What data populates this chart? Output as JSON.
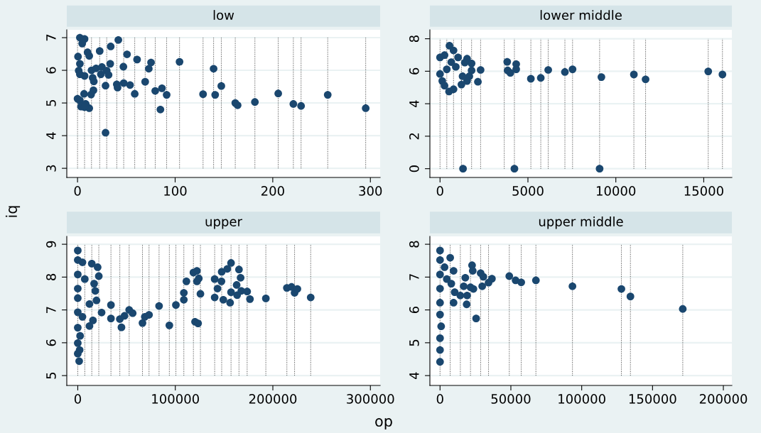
{
  "chart_data": [
    {
      "type": "scatter",
      "title": "low",
      "ylabel": "iq",
      "xlim": [
        -11,
        310
      ],
      "xticks": [
        0,
        100,
        200,
        300
      ],
      "ylim": [
        2.72,
        7.24
      ],
      "yticks": [
        3,
        4,
        5,
        6,
        7
      ],
      "grid": "y",
      "marker": "circle",
      "series": [
        {
          "color": "#1a476f",
          "x": [
            2.4,
            7.2,
            4.8,
            0.5,
            10.3,
            12,
            22.7,
            34,
            41.8,
            50.7,
            61,
            75.3,
            104.5,
            139.4,
            73,
            47,
            2.4,
            1.2,
            2.4,
            7.2,
            14.3,
            19,
            25,
            33.5,
            29.9,
            23.9,
            31.8,
            15.5,
            16.7,
            28.7,
            40.2,
            41,
            47.3,
            53.8,
            69.3,
            58.6,
            79.6,
            86.5,
            91.3,
            84.9,
            128.6,
            141,
            147.3,
            161.6,
            164,
            181.7,
            205.6,
            221.1,
            229,
            256.3,
            295.2,
            28.7,
            16.3,
            6.7,
            13.9,
            0,
            2.4,
            8.4,
            3.6,
            12,
            7.2
          ],
          "values": [
            7.0,
            6.96,
            6.82,
            6.42,
            6.55,
            6.44,
            6.59,
            6.73,
            6.93,
            6.49,
            6.33,
            6.24,
            6.26,
            6.05,
            6.05,
            6.11,
            6.2,
            5.99,
            5.88,
            5.83,
            6.0,
            6.06,
            6.1,
            6.2,
            5.99,
            5.88,
            5.86,
            5.77,
            5.66,
            5.53,
            5.57,
            5.47,
            5.61,
            5.55,
            5.65,
            5.28,
            5.37,
            5.45,
            5.25,
            4.8,
            5.27,
            5.25,
            5.52,
            5.0,
            4.93,
            5.03,
            5.29,
            4.97,
            4.91,
            5.25,
            4.84,
            4.09,
            5.39,
            5.28,
            5.26,
            5.13,
            5.08,
            4.97,
            4.89,
            4.84,
            4.87
          ]
        }
      ],
      "ref_lines": [
        {
          "axis": "x",
          "value": 0,
          "line_style": "dotted"
        },
        {
          "axis": "x",
          "value": 7.2,
          "line_style": "dotted"
        },
        {
          "axis": "x",
          "value": 14.3,
          "line_style": "dotted"
        },
        {
          "axis": "x",
          "value": 22.7,
          "line_style": "dotted"
        },
        {
          "axis": "x",
          "value": 29.9,
          "line_style": "dotted"
        },
        {
          "axis": "x",
          "value": 40.2,
          "line_style": "dotted"
        },
        {
          "axis": "x",
          "value": 47.3,
          "line_style": "dotted"
        },
        {
          "axis": "x",
          "value": 58.6,
          "line_style": "dotted"
        },
        {
          "axis": "x",
          "value": 69.3,
          "line_style": "dotted"
        },
        {
          "axis": "x",
          "value": 79.6,
          "line_style": "dotted"
        },
        {
          "axis": "x",
          "value": 91.3,
          "line_style": "dotted"
        },
        {
          "axis": "x",
          "value": 104.5,
          "line_style": "dotted"
        },
        {
          "axis": "x",
          "value": 128.6,
          "line_style": "dotted"
        },
        {
          "axis": "x",
          "value": 139.4,
          "line_style": "dotted"
        },
        {
          "axis": "x",
          "value": 147.3,
          "line_style": "dotted"
        },
        {
          "axis": "x",
          "value": 161.6,
          "line_style": "dotted"
        },
        {
          "axis": "x",
          "value": 181.7,
          "line_style": "dotted"
        },
        {
          "axis": "x",
          "value": 205.6,
          "line_style": "dotted"
        },
        {
          "axis": "x",
          "value": 221.1,
          "line_style": "dotted"
        },
        {
          "axis": "x",
          "value": 229,
          "line_style": "dotted"
        },
        {
          "axis": "x",
          "value": 256.3,
          "line_style": "dotted"
        },
        {
          "axis": "x",
          "value": 295.2,
          "line_style": "dotted"
        }
      ]
    },
    {
      "type": "scatter",
      "title": "lower middle",
      "xlim": [
        -577,
        16600
      ],
      "xticks": [
        0,
        5000,
        10000,
        15000
      ],
      "ylim": [
        -0.54,
        8.55
      ],
      "yticks": [
        0,
        2,
        4,
        6,
        8
      ],
      "grid": "y",
      "marker": "circle",
      "series": [
        {
          "color": "#1a476f",
          "x": [
            538,
            769,
            0,
            256,
            1026,
            1538,
            1795,
            1410,
            385,
            897,
            1795,
            0,
            1667,
            1538,
            1218,
            128,
            256,
            513,
            769,
            641,
            1282,
            2308,
            2154,
            1308,
            3821,
            3846,
            4000,
            4333,
            4333,
            4231,
            5167,
            5731,
            6154,
            7103,
            7538,
            9077,
            9179,
            11026,
            11692,
            15256,
            16064
          ],
          "values": [
            7.57,
            7.28,
            6.85,
            6.99,
            6.85,
            6.77,
            6.48,
            6.53,
            6.12,
            6.27,
            6.05,
            5.83,
            5.69,
            5.4,
            5.18,
            5.4,
            5.11,
            4.75,
            4.89,
            6.56,
            5.69,
            6.08,
            5.35,
            0.0,
            6.58,
            6.05,
            5.9,
            6.44,
            6.12,
            0.0,
            5.54,
            5.59,
            6.08,
            5.95,
            6.12,
            0.0,
            5.64,
            5.8,
            5.5,
            5.99,
            5.8
          ]
        }
      ],
      "ref_lines": [
        {
          "axis": "x",
          "value": 0,
          "line_style": "dotted"
        },
        {
          "axis": "x",
          "value": 385,
          "line_style": "dotted"
        },
        {
          "axis": "x",
          "value": 769,
          "line_style": "dotted"
        },
        {
          "axis": "x",
          "value": 1218,
          "line_style": "dotted"
        },
        {
          "axis": "x",
          "value": 1795,
          "line_style": "dotted"
        },
        {
          "axis": "x",
          "value": 2308,
          "line_style": "dotted"
        },
        {
          "axis": "x",
          "value": 3654,
          "line_style": "dotted"
        },
        {
          "axis": "x",
          "value": 4231,
          "line_style": "dotted"
        },
        {
          "axis": "x",
          "value": 5167,
          "line_style": "dotted"
        },
        {
          "axis": "x",
          "value": 5731,
          "line_style": "dotted"
        },
        {
          "axis": "x",
          "value": 6154,
          "line_style": "dotted"
        },
        {
          "axis": "x",
          "value": 7103,
          "line_style": "dotted"
        },
        {
          "axis": "x",
          "value": 7538,
          "line_style": "dotted"
        },
        {
          "axis": "x",
          "value": 9077,
          "line_style": "dotted"
        },
        {
          "axis": "x",
          "value": 11026,
          "line_style": "dotted"
        },
        {
          "axis": "x",
          "value": 11692,
          "line_style": "dotted"
        },
        {
          "axis": "x",
          "value": 15256,
          "line_style": "dotted"
        },
        {
          "axis": "x",
          "value": 16064,
          "line_style": "dotted"
        }
      ]
    },
    {
      "type": "scatter",
      "title": "upper",
      "xlabel": "op",
      "xlim": [
        -11257,
        310000
      ],
      "xticks": [
        0,
        100000,
        200000,
        300000
      ],
      "ylim": [
        4.7,
        9.24
      ],
      "yticks": [
        5,
        6,
        7,
        8,
        9
      ],
      "grid": "y",
      "marker": "circle",
      "series": [
        {
          "color": "#1a476f",
          "x": [
            0,
            0,
            4790,
            14371,
            20359,
            21557,
            0,
            7186,
            16766,
            0,
            17964,
            0,
            19162,
            11976,
            0,
            4790,
            15569,
            11976,
            0,
            2395,
            0,
            1916,
            0,
            1437,
            24431,
            34012,
            34012,
            43114,
            44790,
            47904,
            52695,
            56287,
            66347,
            68743,
            73054,
            83353,
            93892,
            100599,
            108743,
            108743,
            111377,
            118563,
            122156,
            122156,
            124072,
            120240,
            123353,
            125749,
            140359,
            140359,
            143234,
            147545,
            147305,
            149222,
            153293,
            157126,
            156168,
            157126,
            165269,
            166946,
            162874,
            163353,
            167665,
            173653,
            176527,
            192814,
            214371,
            219162,
            222275,
            225150,
            238802
          ],
          "values": [
            8.81,
            8.52,
            8.45,
            8.41,
            8.3,
            8.03,
            8.08,
            7.94,
            7.8,
            7.65,
            7.58,
            7.36,
            7.29,
            7.18,
            6.93,
            6.79,
            6.68,
            6.51,
            6.46,
            6.21,
            5.99,
            5.78,
            5.67,
            5.44,
            6.92,
            7.15,
            6.74,
            6.72,
            6.47,
            6.82,
            7.0,
            6.9,
            6.6,
            6.79,
            6.85,
            7.12,
            6.53,
            7.15,
            7.52,
            7.31,
            7.87,
            8.14,
            8.19,
            7.87,
            7.96,
            6.64,
            6.59,
            7.49,
            7.94,
            7.38,
            7.65,
            8.16,
            7.87,
            7.31,
            8.25,
            8.43,
            7.22,
            7.54,
            8.23,
            7.98,
            7.76,
            7.45,
            7.58,
            7.56,
            7.33,
            7.35,
            7.67,
            7.7,
            7.52,
            7.64,
            7.38
          ]
        }
      ],
      "ref_lines": [
        {
          "axis": "x",
          "value": 0,
          "line_style": "dotted"
        },
        {
          "axis": "x",
          "value": 7186,
          "line_style": "dotted"
        },
        {
          "axis": "x",
          "value": 14371,
          "line_style": "dotted"
        },
        {
          "axis": "x",
          "value": 21557,
          "line_style": "dotted"
        },
        {
          "axis": "x",
          "value": 34012,
          "line_style": "dotted"
        },
        {
          "axis": "x",
          "value": 43114,
          "line_style": "dotted"
        },
        {
          "axis": "x",
          "value": 52695,
          "line_style": "dotted"
        },
        {
          "axis": "x",
          "value": 66347,
          "line_style": "dotted"
        },
        {
          "axis": "x",
          "value": 73054,
          "line_style": "dotted"
        },
        {
          "axis": "x",
          "value": 83353,
          "line_style": "dotted"
        },
        {
          "axis": "x",
          "value": 93892,
          "line_style": "dotted"
        },
        {
          "axis": "x",
          "value": 100599,
          "line_style": "dotted"
        },
        {
          "axis": "x",
          "value": 108743,
          "line_style": "dotted"
        },
        {
          "axis": "x",
          "value": 118563,
          "line_style": "dotted"
        },
        {
          "axis": "x",
          "value": 125749,
          "line_style": "dotted"
        },
        {
          "axis": "x",
          "value": 140359,
          "line_style": "dotted"
        },
        {
          "axis": "x",
          "value": 147545,
          "line_style": "dotted"
        },
        {
          "axis": "x",
          "value": 157126,
          "line_style": "dotted"
        },
        {
          "axis": "x",
          "value": 165269,
          "line_style": "dotted"
        },
        {
          "axis": "x",
          "value": 173653,
          "line_style": "dotted"
        },
        {
          "axis": "x",
          "value": 192814,
          "line_style": "dotted"
        },
        {
          "axis": "x",
          "value": 214371,
          "line_style": "dotted"
        },
        {
          "axis": "x",
          "value": 222275,
          "line_style": "dotted"
        },
        {
          "axis": "x",
          "value": 238802,
          "line_style": "dotted"
        }
      ]
    },
    {
      "type": "scatter",
      "title": "upper middle",
      "xlim": [
        -7166,
        206000
      ],
      "xticks": [
        0,
        50000,
        100000,
        150000,
        200000
      ],
      "ylim": [
        3.7,
        8.24
      ],
      "yticks": [
        4,
        5,
        6,
        7,
        8
      ],
      "grid": "y",
      "marker": "circle",
      "series": [
        {
          "color": "#1a476f",
          "x": [
            0,
            0,
            7166,
            3185,
            9554,
            0,
            4777,
            7962,
            0,
            10350,
            14331,
            9554,
            0,
            0,
            796,
            0,
            0,
            0,
            19108,
            18790,
            16720,
            17834,
            22611,
            23089,
            21497,
            23567,
            25478,
            28662,
            29777,
            30573,
            34236,
            36624,
            48885,
            53344,
            57325,
            67675,
            93471,
            128025,
            134395,
            171338
          ],
          "values": [
            7.81,
            7.52,
            7.59,
            7.3,
            7.19,
            7.08,
            6.94,
            6.8,
            6.65,
            6.54,
            6.44,
            6.22,
            6.22,
            5.86,
            5.5,
            5.14,
            4.78,
            4.42,
            6.44,
            6.17,
            6.72,
            6.98,
            7.36,
            7.19,
            6.69,
            6.64,
            5.74,
            7.12,
            6.72,
            7.01,
            6.83,
            6.95,
            7.03,
            6.9,
            6.84,
            6.9,
            6.72,
            6.64,
            6.41,
            6.03
          ]
        }
      ],
      "ref_lines": [
        {
          "axis": "x",
          "value": 0,
          "line_style": "dotted"
        },
        {
          "axis": "x",
          "value": 7166,
          "line_style": "dotted"
        },
        {
          "axis": "x",
          "value": 14331,
          "line_style": "dotted"
        },
        {
          "axis": "x",
          "value": 21497,
          "line_style": "dotted"
        },
        {
          "axis": "x",
          "value": 28662,
          "line_style": "dotted"
        },
        {
          "axis": "x",
          "value": 34236,
          "line_style": "dotted"
        },
        {
          "axis": "x",
          "value": 48885,
          "line_style": "dotted"
        },
        {
          "axis": "x",
          "value": 57325,
          "line_style": "dotted"
        },
        {
          "axis": "x",
          "value": 67675,
          "line_style": "dotted"
        },
        {
          "axis": "x",
          "value": 93471,
          "line_style": "dotted"
        },
        {
          "axis": "x",
          "value": 128025,
          "line_style": "dotted"
        },
        {
          "axis": "x",
          "value": 134395,
          "line_style": "dotted"
        },
        {
          "axis": "x",
          "value": 171338,
          "line_style": "dotted"
        }
      ]
    }
  ]
}
